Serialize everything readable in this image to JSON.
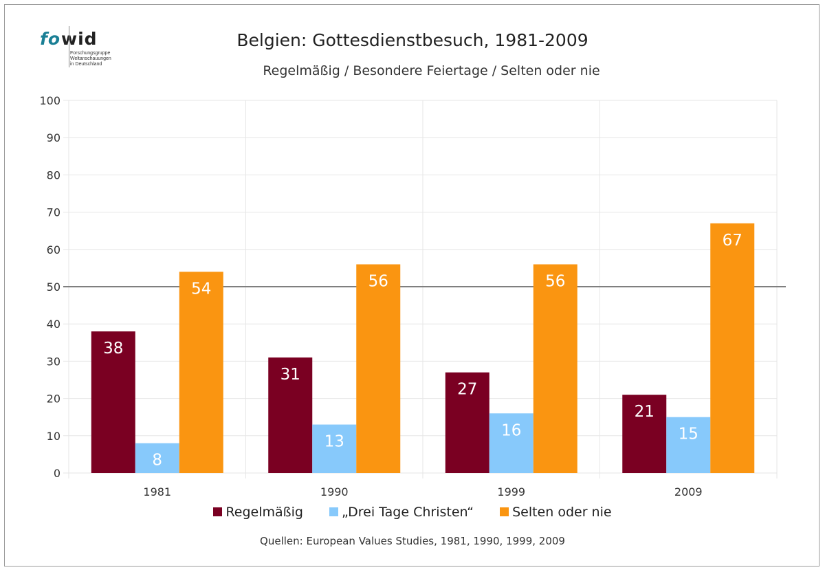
{
  "logo": {
    "brand_fo": "fo",
    "brand_wid": "wid",
    "line1": "Forschungsgruppe",
    "line2": "Weltanschauungen",
    "line3": "in Deutschland"
  },
  "colors": {
    "regelmaessig": "#7a0022",
    "drei_tage": "#87c9fb",
    "selten": "#fa9511",
    "reference_line": "#7f7f7f",
    "grid": "#e6e6e6"
  },
  "chart_data": {
    "type": "bar",
    "title": "Belgien: Gottesdienstbesuch, 1981-2009",
    "subtitle": "Regelmäßig / Besondere Feiertage / Selten oder nie",
    "categories": [
      "1981",
      "1990",
      "1999",
      "2009"
    ],
    "series": [
      {
        "name": "Regelmäßig",
        "values": [
          38,
          31,
          27,
          21
        ]
      },
      {
        "name": "„Drei Tage Christen“",
        "values": [
          8,
          13,
          16,
          15
        ]
      },
      {
        "name": "Selten oder nie",
        "values": [
          54,
          56,
          56,
          67
        ]
      }
    ],
    "ylim": [
      0,
      100
    ],
    "yticks": [
      "0",
      "10",
      "20",
      "30",
      "40",
      "50",
      "60",
      "70",
      "80",
      "90",
      "100"
    ],
    "reference_line": 50,
    "grid": true,
    "legend_position": "bottom",
    "xlabel": "",
    "ylabel": "",
    "source": "Quellen: European Values Studies, 1981, 1990, 1999, 2009"
  }
}
